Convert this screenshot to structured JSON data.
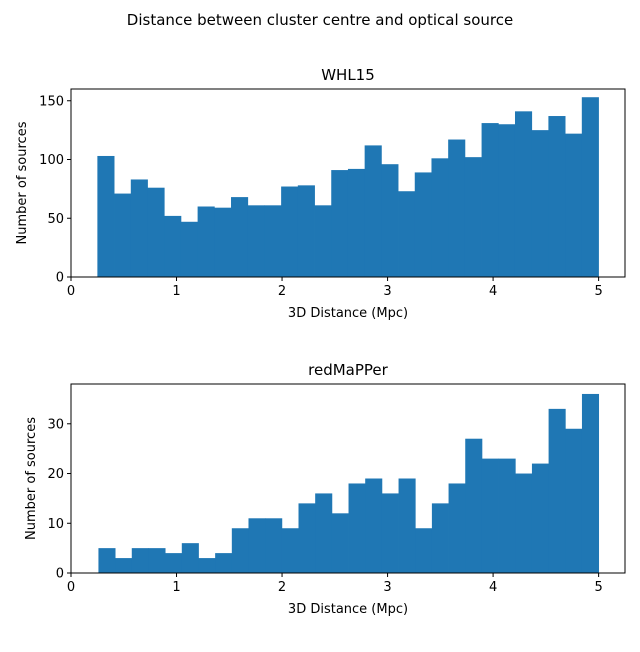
{
  "title": "Distance between cluster centre and optical source",
  "chart_data": [
    {
      "type": "bar",
      "title": "WHL15",
      "xlabel": "3D Distance (Mpc)",
      "ylabel": "Number of sources",
      "xlim": [
        0,
        5.25
      ],
      "ylim": [
        0,
        160
      ],
      "xticks": [
        0,
        1,
        2,
        3,
        4,
        5
      ],
      "yticks": [
        0,
        50,
        100,
        150
      ],
      "bin_start": 0.25,
      "bin_width": 0.1583,
      "values": [
        103,
        71,
        83,
        76,
        52,
        47,
        60,
        59,
        68,
        61,
        61,
        77,
        78,
        61,
        91,
        92,
        112,
        96,
        73,
        89,
        101,
        117,
        102,
        131,
        130,
        141,
        125,
        137,
        122,
        153
      ],
      "color": "#1f77b4",
      "grid": false
    },
    {
      "type": "bar",
      "title": "redMaPPer",
      "xlabel": "3D Distance (Mpc)",
      "ylabel": "Number of sources",
      "xlim": [
        0,
        5.25
      ],
      "ylim": [
        0,
        38
      ],
      "xticks": [
        0,
        1,
        2,
        3,
        4,
        5
      ],
      "yticks": [
        0,
        10,
        20,
        30
      ],
      "bin_start": 0.26,
      "bin_width": 0.158,
      "values": [
        5,
        3,
        5,
        5,
        4,
        6,
        3,
        4,
        9,
        11,
        11,
        9,
        14,
        16,
        12,
        18,
        19,
        16,
        19,
        9,
        14,
        18,
        27,
        23,
        23,
        20,
        22,
        33,
        29,
        36
      ],
      "color": "#1f77b4",
      "grid": false
    }
  ]
}
